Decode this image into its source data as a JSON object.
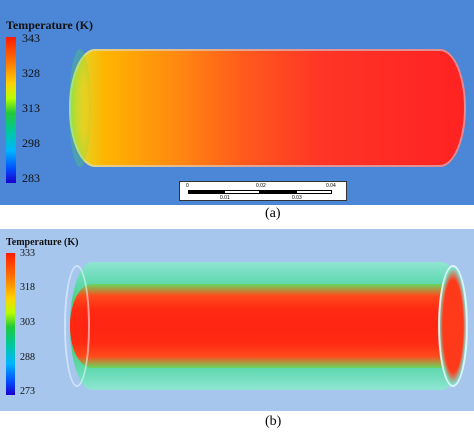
{
  "panel_a": {
    "legend_title": "Temperature (K)",
    "ticks": [
      "343",
      "328",
      "313",
      "298",
      "283"
    ],
    "scalebar": {
      "upper_labels": [
        "0",
        "0.02",
        "0.04"
      ],
      "lower_labels": [
        "0.01",
        "0.03"
      ]
    },
    "caption": "(a)"
  },
  "panel_b": {
    "legend_title": "Temperature (K)",
    "ticks": [
      "333",
      "318",
      "303",
      "288",
      "273"
    ],
    "caption": "(b)"
  },
  "colors": {
    "panel_a_background": "#4b87d6",
    "panel_b_background": "#a6c6ee",
    "hot": "#ff2222",
    "cold": "#1a00cc"
  }
}
